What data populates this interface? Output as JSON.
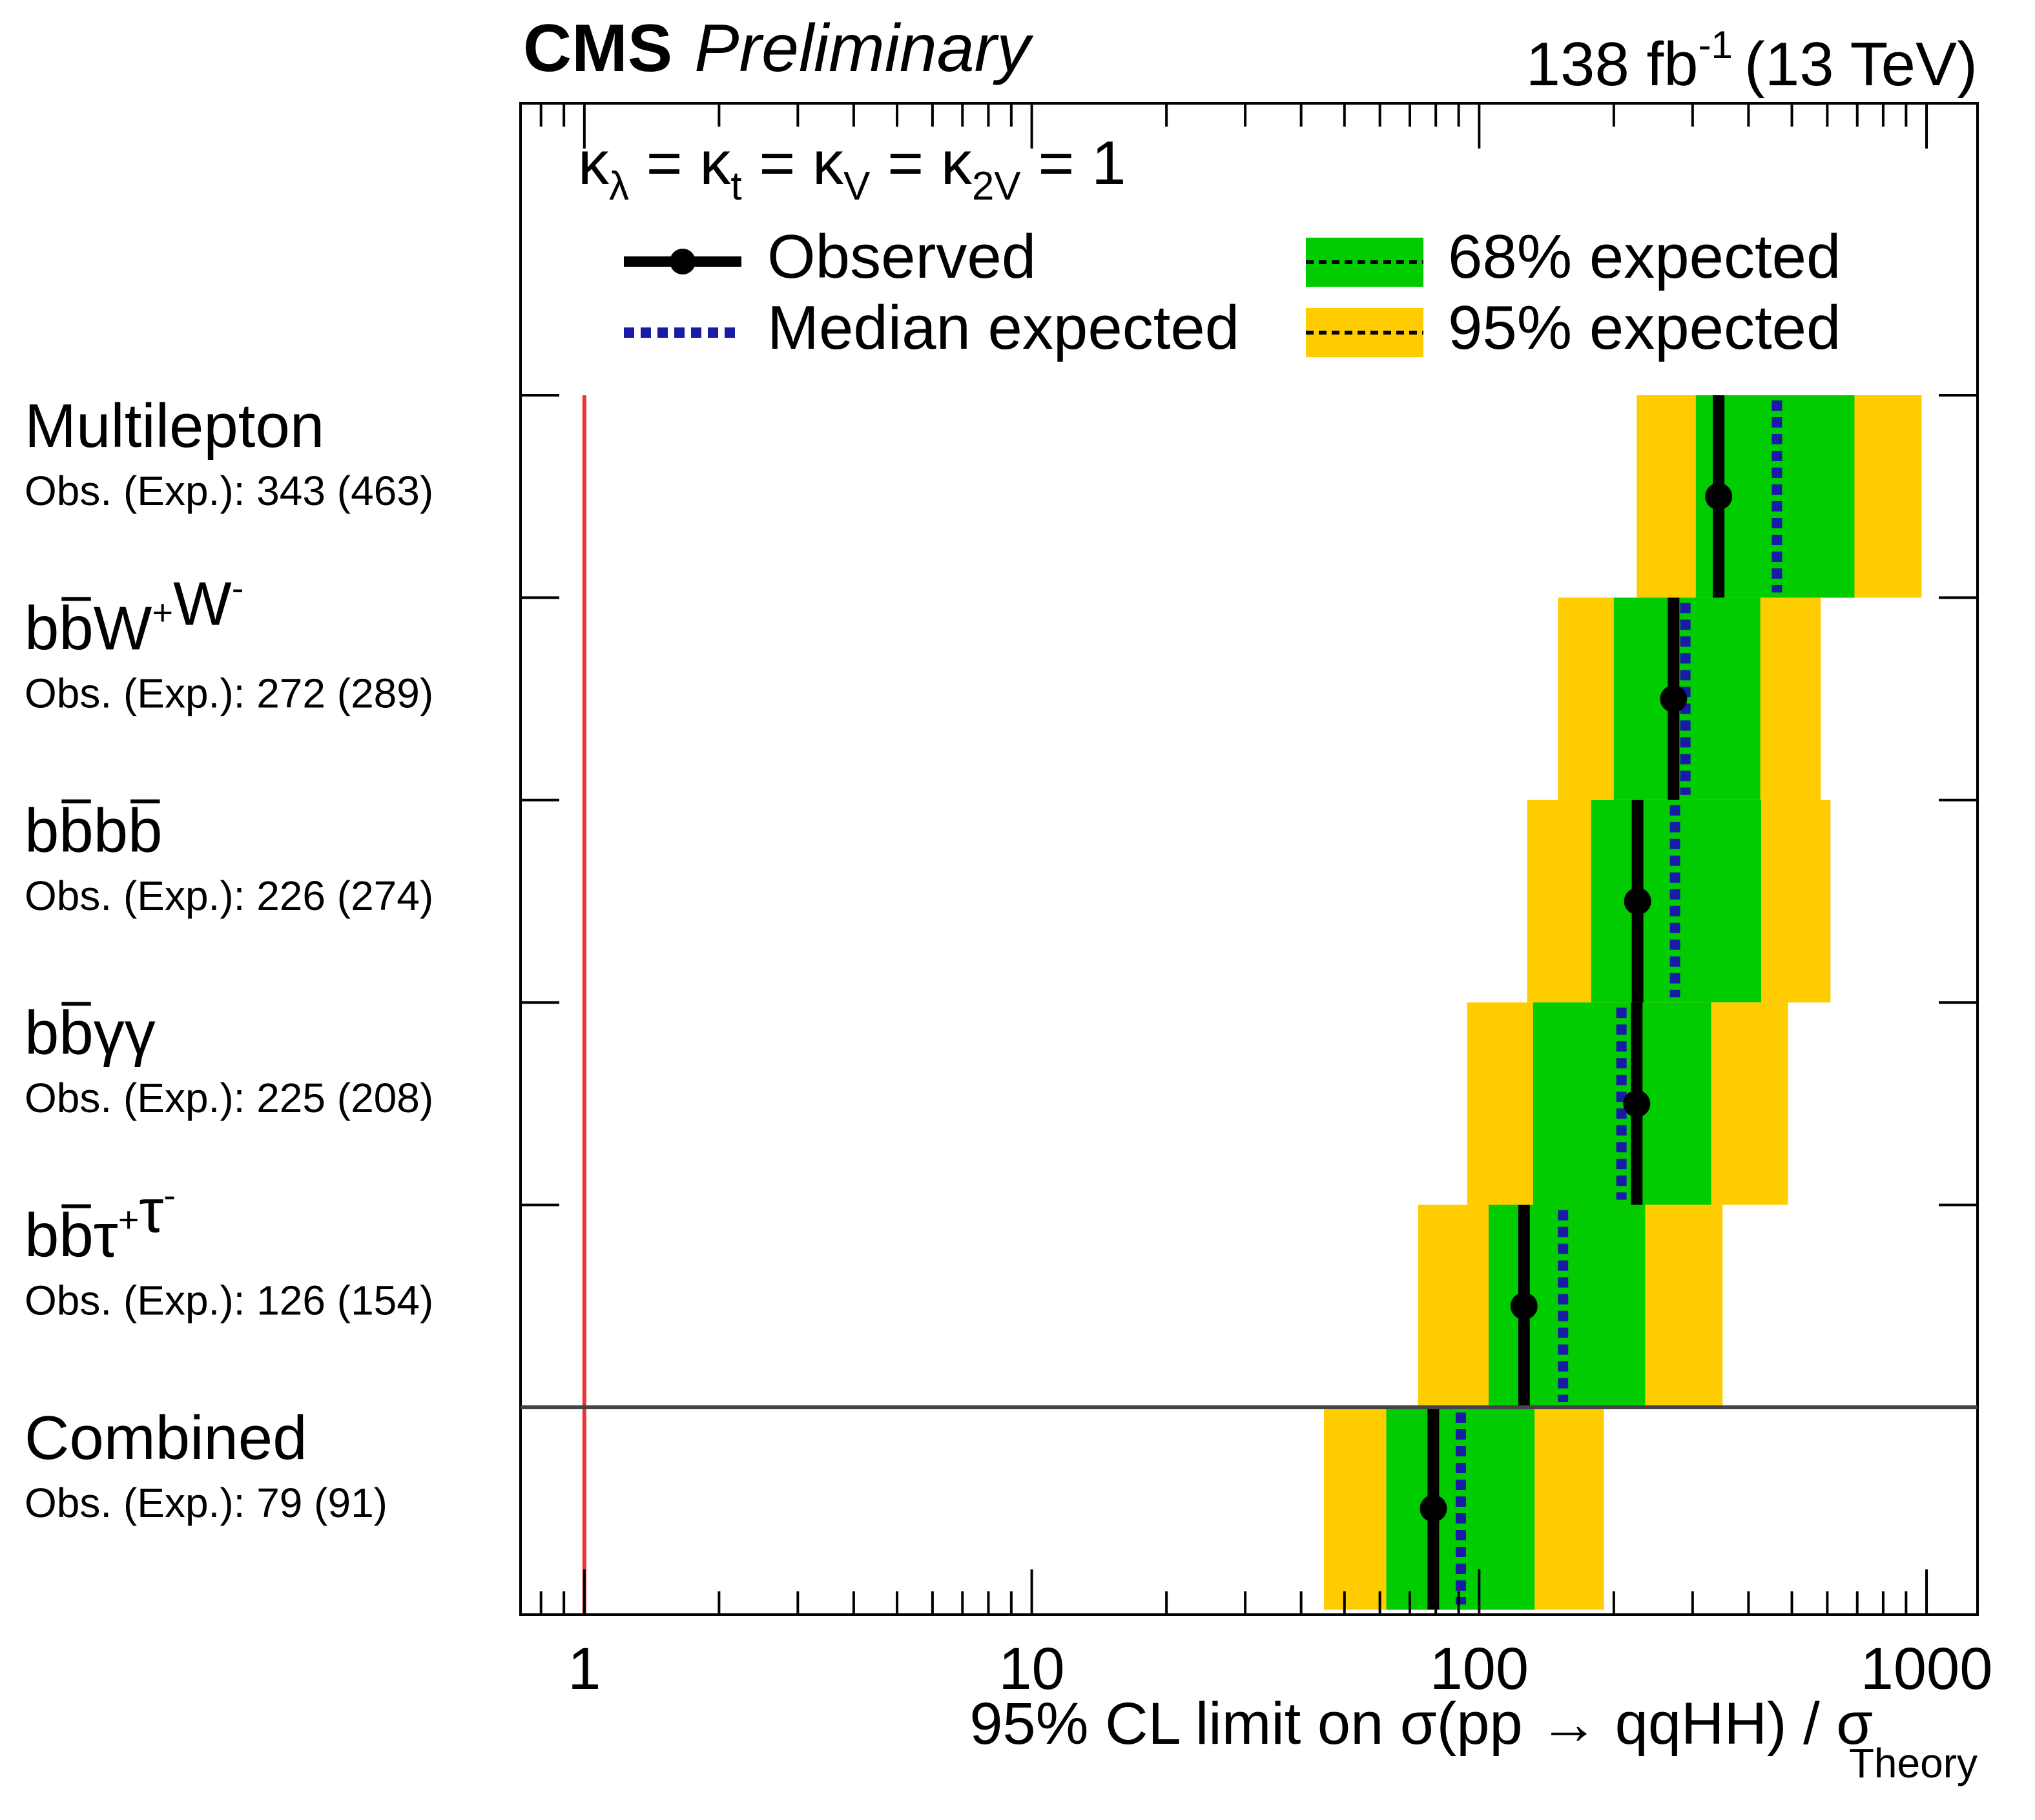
{
  "header": {
    "experiment": "CMS",
    "status": "Preliminary",
    "lumi_value": "138 fb",
    "lumi_exp": "-1",
    "energy": "(13 TeV)"
  },
  "legend": {
    "coupling_parts": [
      "κ",
      "λ",
      " = κ",
      "t",
      " = κ",
      "V",
      " = κ",
      "2V",
      " = 1"
    ],
    "observed": "Observed",
    "median": "Median expected",
    "exp68": "68% expected",
    "exp95": "95% expected"
  },
  "colors": {
    "observed": "#000000",
    "median": "#1a1aa8",
    "band68": "#00cc00",
    "band95": "#ffcc00",
    "sm_line": "#ee3333",
    "frame": "#000000",
    "separator": "#444444"
  },
  "chart_data": {
    "type": "limit-plot",
    "x_scale": "log",
    "xlim": [
      0.72,
      1300
    ],
    "x_ticks": [
      1,
      10,
      100,
      1000
    ],
    "x_tick_labels": [
      "1",
      "10",
      "100",
      "1000"
    ],
    "xlabel": {
      "text": "95% CL limit on σ(pp → qqHH) / σ",
      "subscript": "Theory"
    },
    "reference_line": 1,
    "channels": [
      {
        "name": "Multilepton",
        "parts": [
          {
            "t": "Multilepton"
          }
        ],
        "summary": "Obs. (Exp.): 343 (463)",
        "observed": 343,
        "expected": 463,
        "band68": [
          305,
          690
        ],
        "band95": [
          225,
          975
        ]
      },
      {
        "name": "bbWW",
        "parts": [
          {
            "t": "b"
          },
          {
            "t": "b",
            "bar": true
          },
          {
            "t": "W"
          },
          {
            "t": "+",
            "sup": true
          },
          {
            "t": "W"
          },
          {
            "t": "-",
            "sup": true
          }
        ],
        "summary": "Obs. (Exp.): 272 (289)",
        "observed": 272,
        "expected": 289,
        "band68": [
          200,
          425
        ],
        "band95": [
          150,
          580
        ]
      },
      {
        "name": "bbbb",
        "parts": [
          {
            "t": "b"
          },
          {
            "t": "b",
            "bar": true
          },
          {
            "t": "b"
          },
          {
            "t": "b",
            "bar": true
          }
        ],
        "summary": "Obs. (Exp.): 226 (274)",
        "observed": 226,
        "expected": 274,
        "band68": [
          178,
          427
        ],
        "band95": [
          128,
          610
        ]
      },
      {
        "name": "bbgg",
        "parts": [
          {
            "t": "b"
          },
          {
            "t": "b",
            "bar": true
          },
          {
            "t": "γγ"
          }
        ],
        "summary": "Obs. (Exp.): 225 (208)",
        "observed": 225,
        "expected": 208,
        "band68": [
          132,
          330
        ],
        "band95": [
          94,
          490
        ]
      },
      {
        "name": "bbtautau",
        "parts": [
          {
            "t": "b"
          },
          {
            "t": "b",
            "bar": true
          },
          {
            "t": "τ"
          },
          {
            "t": "+",
            "sup": true
          },
          {
            "t": "τ"
          },
          {
            "t": "-",
            "sup": true
          }
        ],
        "summary": "Obs. (Exp.): 126 (154)",
        "observed": 126,
        "expected": 154,
        "band68": [
          105,
          235
        ],
        "band95": [
          73,
          350
        ]
      },
      {
        "name": "Combined",
        "parts": [
          {
            "t": "Combined"
          }
        ],
        "summary": "Obs. (Exp.): 79 (91)",
        "observed": 79,
        "expected": 91,
        "band68": [
          62,
          133
        ],
        "band95": [
          45,
          190
        ]
      }
    ]
  }
}
